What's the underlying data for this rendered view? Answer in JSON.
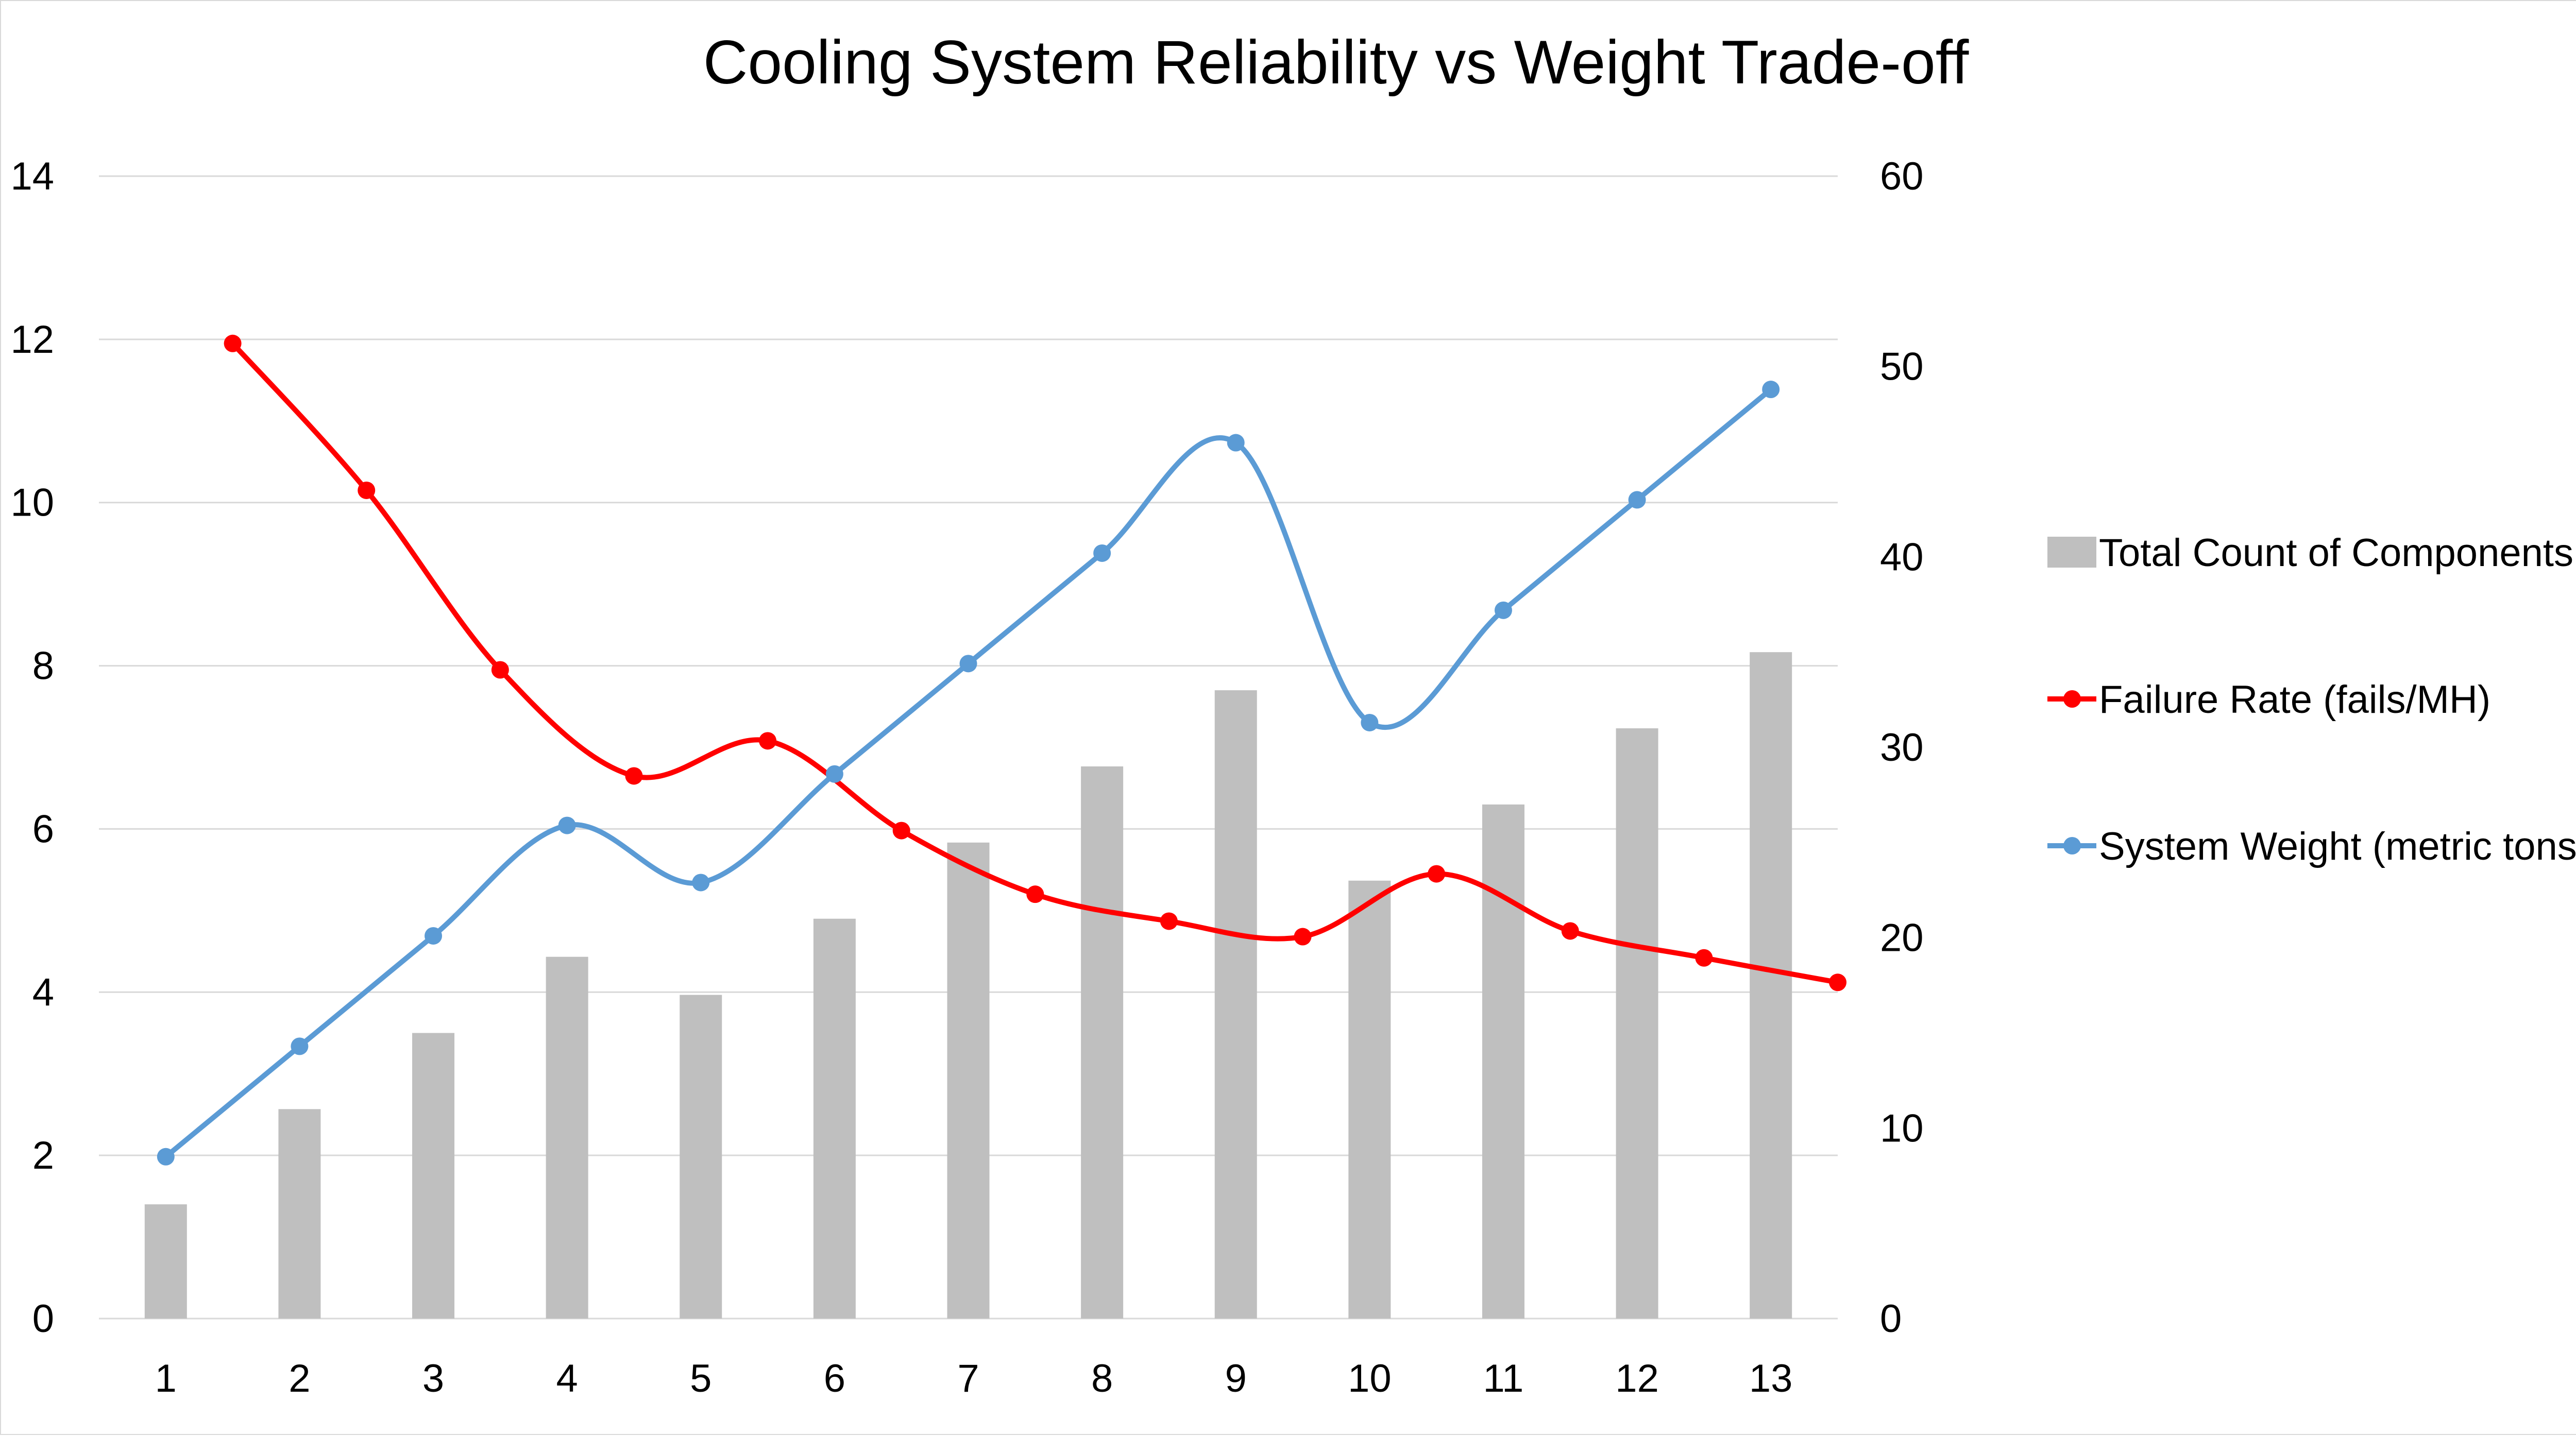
{
  "chart_data": {
    "type": "bar",
    "title": "Cooling System Reliability vs Weight Trade-off",
    "categories": [
      "1",
      "2",
      "3",
      "4",
      "5",
      "6",
      "7",
      "8",
      "9",
      "10",
      "11",
      "12",
      "13"
    ],
    "left_axis": {
      "ylim": [
        0,
        14
      ],
      "ticks": [
        "0",
        "2",
        "4",
        "6",
        "8",
        "10",
        "12",
        "14"
      ]
    },
    "right_axis": {
      "ylim": [
        0,
        60
      ],
      "ticks": [
        "0",
        "10",
        "20",
        "30",
        "40",
        "50",
        "60"
      ]
    },
    "grid": true,
    "legend_position": "right",
    "series": [
      {
        "name": "Total Count of Components",
        "kind": "bar",
        "axis": "right",
        "color": "#bfbfbf",
        "values": [
          6,
          11,
          15,
          19,
          17,
          21,
          25,
          29,
          33,
          23,
          27,
          31,
          35
        ]
      },
      {
        "name": "Failure Rate  (fails/MH)",
        "kind": "line",
        "axis": "left",
        "smooth": true,
        "color": "#ff0000",
        "x": [
          1,
          2,
          3,
          4,
          5,
          6,
          7,
          8,
          9,
          10,
          11,
          12,
          13
        ],
        "values": [
          11.95,
          10.15,
          7.95,
          6.65,
          7.08,
          5.98,
          5.2,
          4.87,
          4.68,
          5.45,
          4.75,
          4.42,
          4.12
        ]
      },
      {
        "name": "System Weight  (metric tons)",
        "kind": "line",
        "axis": "right",
        "smooth": true,
        "color": "#5b9bd5",
        "x": [
          0.5,
          1.5,
          2.5,
          3.5,
          4.5,
          5.5,
          6.5,
          7.5,
          8.5,
          9.5,
          10.5,
          11.5,
          12.5
        ],
        "values": [
          8.5,
          14.3,
          20.1,
          25.9,
          22.9,
          28.6,
          34.4,
          40.2,
          46.0,
          31.3,
          37.2,
          43.0,
          48.8
        ]
      }
    ]
  }
}
